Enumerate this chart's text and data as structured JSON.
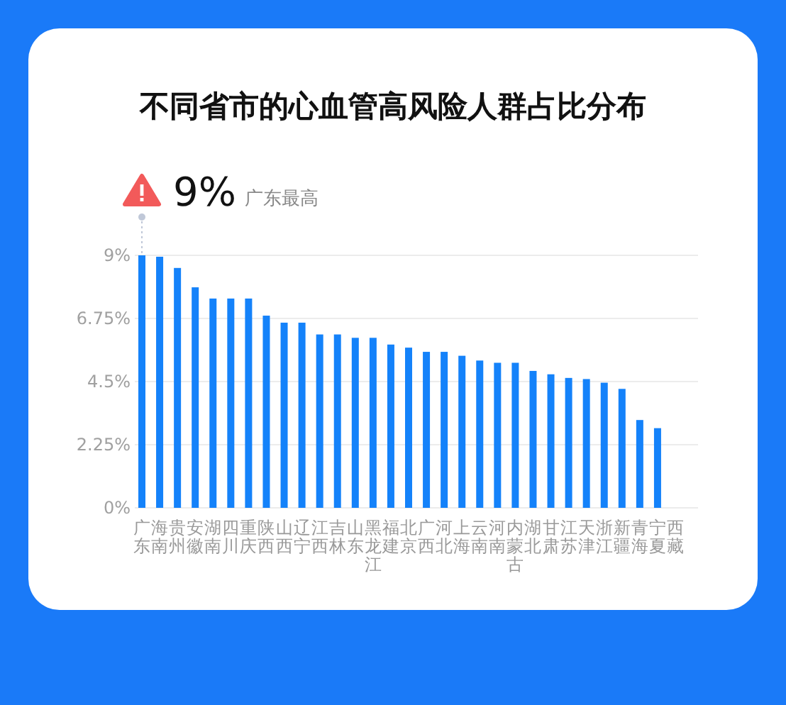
{
  "chart_data": {
    "type": "bar",
    "title": "不同省市的心血管高风险人群占比分布",
    "categories": [
      "广东",
      "海南",
      "贵州",
      "安徽",
      "湖南",
      "四川",
      "重庆",
      "陕西",
      "山西",
      "辽宁",
      "江西",
      "吉林",
      "山东",
      "黑龙江",
      "福建",
      "北京",
      "广西",
      "河北",
      "上海",
      "云南",
      "河南",
      "内蒙古",
      "湖北",
      "甘肃",
      "江苏",
      "天津",
      "浙江",
      "新疆",
      "青海",
      "宁夏",
      "西藏"
    ],
    "values": [
      9.0,
      8.95,
      8.55,
      7.86,
      7.46,
      7.46,
      7.46,
      6.85,
      6.6,
      6.6,
      6.18,
      6.18,
      6.06,
      6.06,
      5.82,
      5.71,
      5.56,
      5.56,
      5.42,
      5.25,
      5.17,
      5.17,
      4.88,
      4.76,
      4.63,
      4.59,
      4.46,
      4.24,
      3.13,
      2.84,
      null
    ],
    "color": "#1482fa",
    "ylim": [
      0,
      9
    ],
    "yticks": [
      {
        "value": 0,
        "label": "0%"
      },
      {
        "value": 2.25,
        "label": "2.25%"
      },
      {
        "value": 4.5,
        "label": "4.5%"
      },
      {
        "value": 6.75,
        "label": "6.75%"
      },
      {
        "value": 9,
        "label": "9%"
      }
    ],
    "grid": "y",
    "annotations": [
      {
        "text": "9%",
        "x": "广东",
        "y": 9
      },
      "广东最高"
    ]
  }
}
